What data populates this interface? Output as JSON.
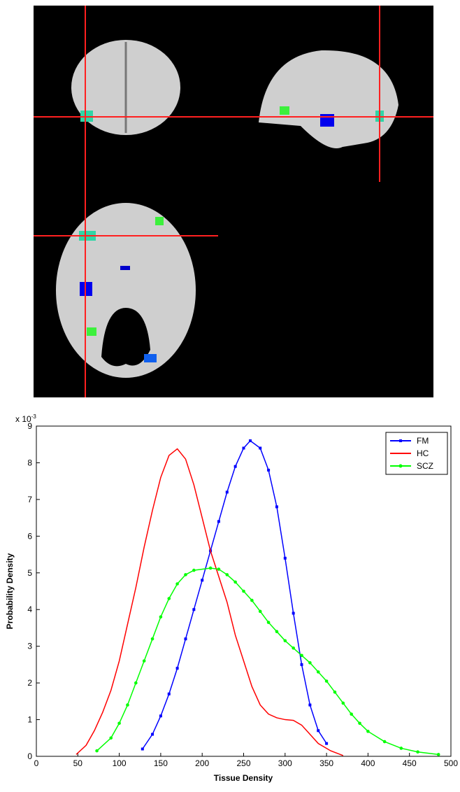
{
  "chart_data": {
    "type": "line",
    "xlabel": "Tissue Density",
    "ylabel": "Probability Density",
    "y_multiplier": "x 10",
    "y_exponent": "-3",
    "xlim": [
      0,
      500
    ],
    "ylim": [
      0,
      9
    ],
    "xticks": [
      0,
      50,
      100,
      150,
      200,
      250,
      300,
      350,
      400,
      450,
      500
    ],
    "yticks": [
      0,
      1,
      2,
      3,
      4,
      5,
      6,
      7,
      8,
      9
    ],
    "legend": "upper right",
    "series": [
      {
        "name": "FM",
        "color": "#0000ff",
        "marker": "square",
        "x": [
          128,
          140,
          150,
          160,
          170,
          180,
          190,
          200,
          210,
          220,
          230,
          240,
          250,
          258,
          270,
          280,
          290,
          300,
          310,
          320,
          330,
          340,
          350
        ],
        "values": [
          0.2,
          0.6,
          1.1,
          1.7,
          2.4,
          3.2,
          4.0,
          4.8,
          5.6,
          6.4,
          7.2,
          7.9,
          8.4,
          8.6,
          8.4,
          7.8,
          6.8,
          5.4,
          3.9,
          2.5,
          1.4,
          0.7,
          0.35
        ]
      },
      {
        "name": "HC",
        "color": "#ff0000",
        "marker": null,
        "x": [
          48,
          60,
          70,
          80,
          90,
          100,
          110,
          120,
          130,
          140,
          150,
          160,
          170,
          180,
          190,
          200,
          210,
          220,
          230,
          240,
          250,
          260,
          270,
          280,
          290,
          300,
          310,
          320,
          330,
          340,
          355,
          370
        ],
        "values": [
          0.05,
          0.3,
          0.7,
          1.2,
          1.8,
          2.6,
          3.6,
          4.6,
          5.7,
          6.7,
          7.6,
          8.2,
          8.38,
          8.1,
          7.4,
          6.5,
          5.6,
          4.9,
          4.2,
          3.3,
          2.6,
          1.9,
          1.4,
          1.15,
          1.05,
          1.0,
          0.98,
          0.85,
          0.6,
          0.35,
          0.15,
          0.02
        ]
      },
      {
        "name": "SCZ",
        "color": "#00ff00",
        "marker": "circle",
        "x": [
          73,
          90,
          100,
          110,
          120,
          130,
          140,
          150,
          160,
          170,
          180,
          190,
          210,
          220,
          230,
          240,
          250,
          260,
          270,
          280,
          290,
          300,
          310,
          320,
          330,
          340,
          350,
          360,
          370,
          380,
          390,
          400,
          420,
          440,
          460,
          485
        ],
        "values": [
          0.15,
          0.5,
          0.9,
          1.4,
          2.0,
          2.6,
          3.2,
          3.8,
          4.3,
          4.7,
          4.95,
          5.07,
          5.13,
          5.1,
          4.95,
          4.75,
          4.5,
          4.25,
          3.95,
          3.65,
          3.4,
          3.15,
          2.95,
          2.75,
          2.55,
          2.3,
          2.05,
          1.75,
          1.45,
          1.15,
          0.9,
          0.68,
          0.4,
          0.22,
          0.12,
          0.05
        ]
      }
    ]
  }
}
